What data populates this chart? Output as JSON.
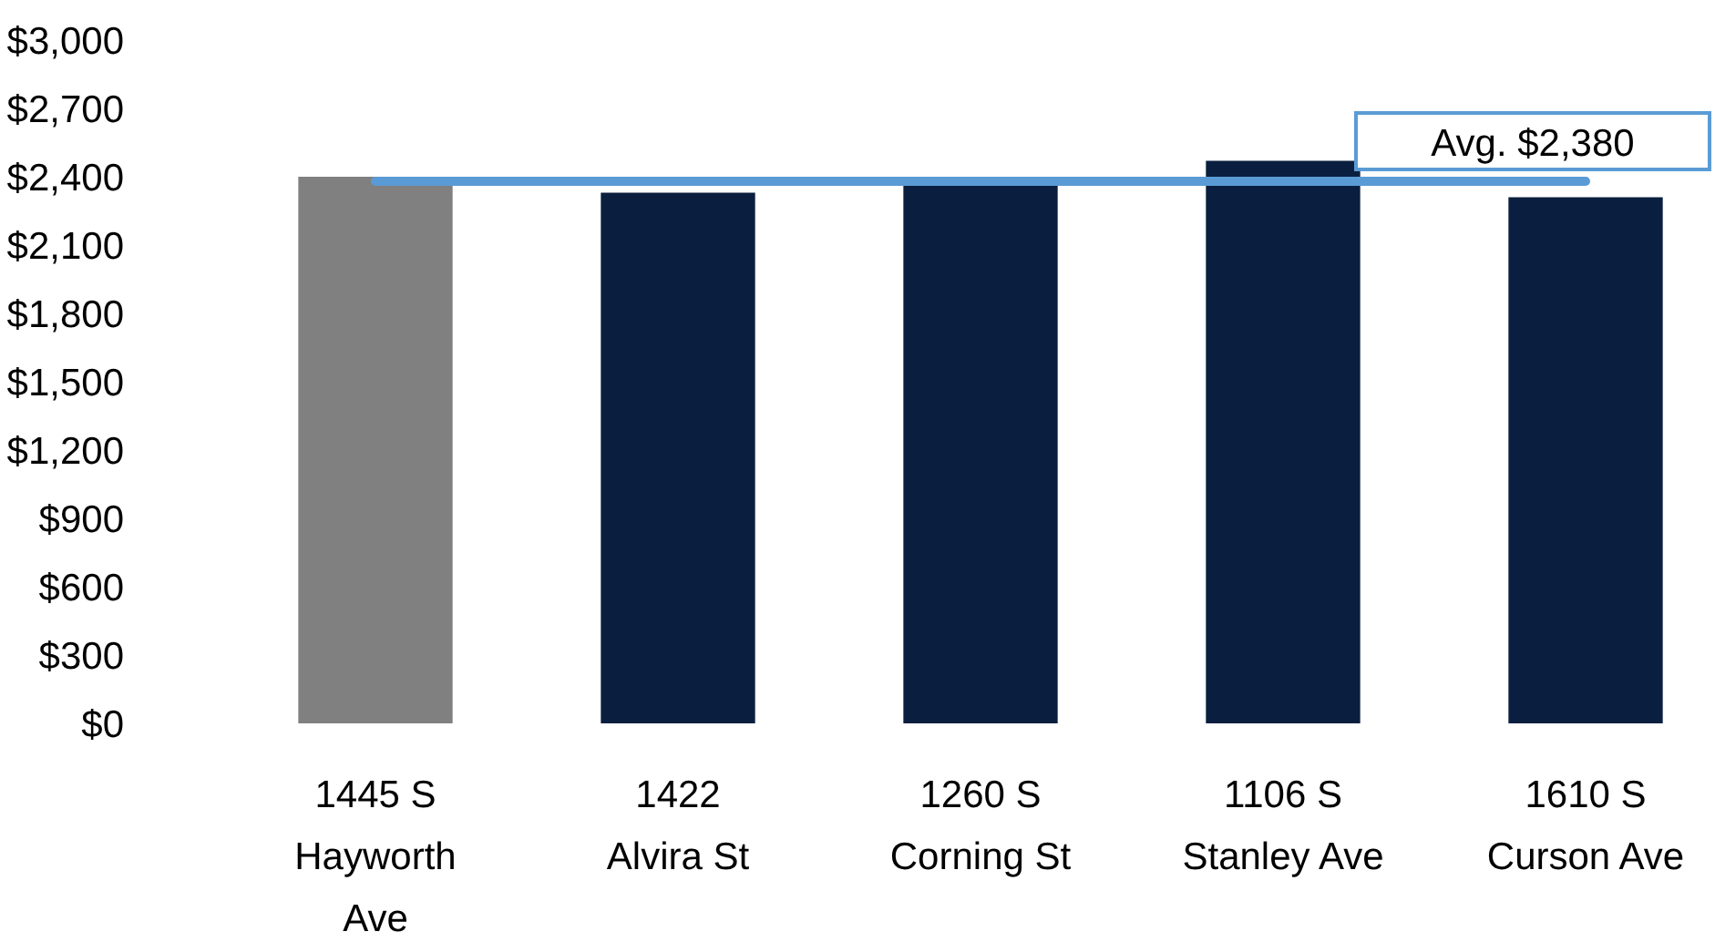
{
  "chart_data": {
    "type": "bar",
    "categories": [
      "1445 S\nHayworth\nAve",
      "1422\nAlvira St",
      "1260 S\nCorning St",
      "1106 S\nStanley Ave",
      "1610 S\nCurson Ave"
    ],
    "values": [
      2400,
      2330,
      2360,
      2470,
      2310
    ],
    "colors": [
      "#808080",
      "#0a1f3f",
      "#0a1f3f",
      "#0a1f3f",
      "#0a1f3f"
    ],
    "ylim": [
      0,
      3000
    ],
    "yticks": [
      {
        "value": 0,
        "label": "$0"
      },
      {
        "value": 300,
        "label": "$300"
      },
      {
        "value": 600,
        "label": "$600"
      },
      {
        "value": 900,
        "label": "$900"
      },
      {
        "value": 1200,
        "label": "$1,200"
      },
      {
        "value": 1500,
        "label": "$1,500"
      },
      {
        "value": 1800,
        "label": "$1,800"
      },
      {
        "value": 2100,
        "label": "$2,100"
      },
      {
        "value": 2400,
        "label": "$2,400"
      },
      {
        "value": 2700,
        "label": "$2,700"
      },
      {
        "value": 3000,
        "label": "$3,000"
      }
    ],
    "ref_lines": [
      {
        "axis": "y",
        "value": 2380,
        "label": "Avg. $2,380",
        "color": "#5b9bd5"
      }
    ],
    "grid": false
  }
}
